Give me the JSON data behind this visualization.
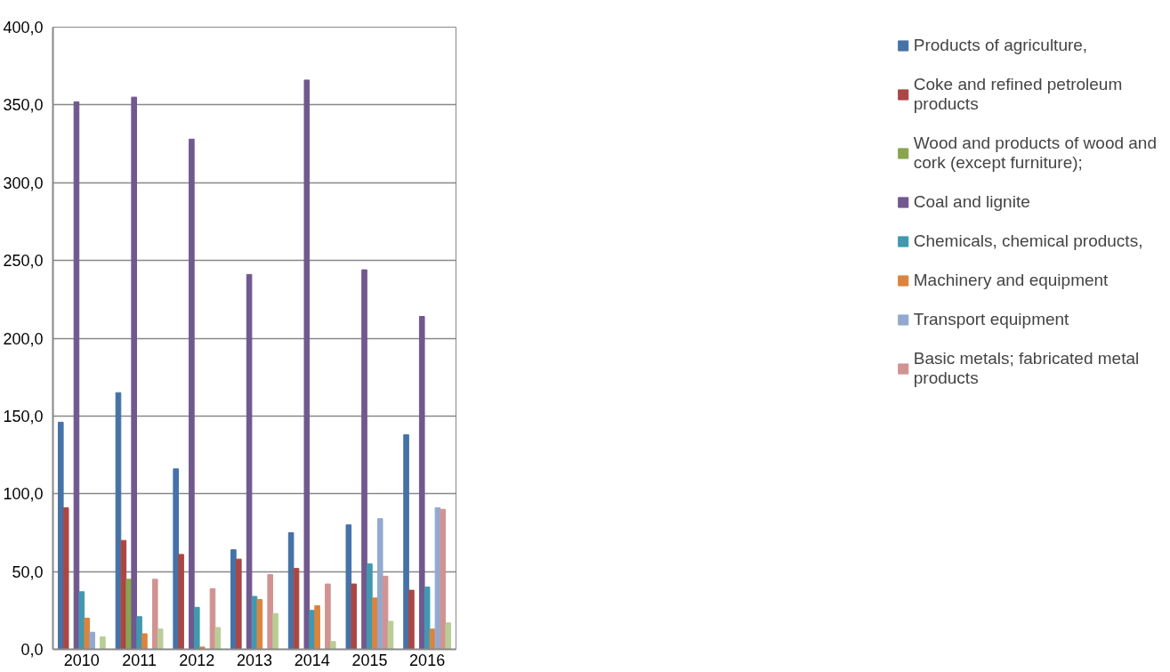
{
  "chart_data": {
    "type": "bar",
    "categories": [
      "2010",
      "2011",
      "2012",
      "2013",
      "2014",
      "2015",
      "2016"
    ],
    "series": [
      {
        "name": "Products of agriculture,",
        "color": "#4572a7",
        "values": [
          146,
          165,
          116,
          64,
          75,
          80,
          138
        ]
      },
      {
        "name": "Coke and refined petroleum products",
        "color": "#aa4643",
        "values": [
          91,
          70,
          61,
          58,
          52,
          42,
          38
        ]
      },
      {
        "name": "Wood and products of wood and cork (except furniture);",
        "color": "#89a54e",
        "values": [
          null,
          45,
          null,
          null,
          null,
          null,
          null
        ]
      },
      {
        "name": "Coal and lignite",
        "color": "#71588f",
        "values": [
          352,
          355,
          328,
          241,
          366,
          244,
          214
        ]
      },
      {
        "name": "Chemicals, chemical products,",
        "color": "#4198af",
        "values": [
          37,
          21,
          27,
          34,
          25,
          55,
          40
        ]
      },
      {
        "name": "Machinery and equipment",
        "color": "#db843d",
        "values": [
          20,
          10,
          1.5,
          32,
          28,
          33,
          13
        ]
      },
      {
        "name": "Transport equipment",
        "color": "#93a9cf",
        "values": [
          11,
          null,
          null,
          null,
          null,
          84,
          91
        ]
      },
      {
        "name": "Basic metals; fabricated metal products",
        "color": "#d19392",
        "values": [
          null,
          45,
          39,
          48,
          42,
          47,
          90
        ]
      },
      {
        "color": "#b9cd96",
        "values": [
          8,
          13,
          14,
          23,
          5,
          18,
          17
        ]
      }
    ],
    "ylim": [
      0,
      400
    ],
    "yticks": [
      {
        "value": 0,
        "label": "0,0"
      },
      {
        "value": 50,
        "label": "50,0"
      },
      {
        "value": 100,
        "label": "100,0"
      },
      {
        "value": 150,
        "label": "150,0"
      },
      {
        "value": 200,
        "label": "200,0"
      },
      {
        "value": 250,
        "label": "250,0"
      },
      {
        "value": 300,
        "label": "300,0"
      },
      {
        "value": 350,
        "label": "350,0"
      },
      {
        "value": 400,
        "label": "400,0"
      }
    ],
    "grid": "y",
    "legend": "right"
  }
}
